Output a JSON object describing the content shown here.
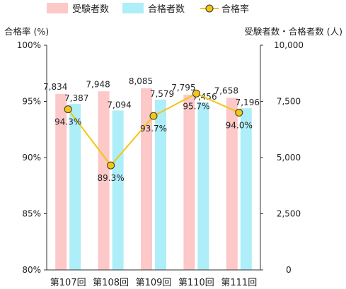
{
  "chart_data": {
    "type": "bar",
    "categories": [
      "第107回",
      "第108回",
      "第109回",
      "第110回",
      "第111回"
    ],
    "series": [
      {
        "name": "受験者数",
        "type": "bar",
        "axis": "right",
        "color": "#fcc8c8",
        "values": [
          7834,
          7948,
          8085,
          7795,
          7658
        ],
        "labels": [
          "7,834",
          "7,948",
          "8,085",
          "7,795",
          "7,658"
        ]
      },
      {
        "name": "合格者数",
        "type": "bar",
        "axis": "right",
        "color": "#aeeef8",
        "values": [
          7387,
          7094,
          7579,
          7456,
          7196
        ],
        "labels": [
          "7,387",
          "7,094",
          "7,579",
          "7,456",
          "7,196"
        ]
      },
      {
        "name": "合格率",
        "type": "line",
        "axis": "left",
        "color": "#f3c614",
        "values": [
          94.3,
          89.3,
          93.7,
          95.7,
          94.0
        ],
        "labels": [
          "94.3%",
          "89.3%",
          "93.7%",
          "95.7%",
          "94.0%"
        ]
      }
    ],
    "y_left": {
      "label": "合格率 (%)",
      "min": 80,
      "max": 100,
      "ticks": [
        80,
        85,
        90,
        95,
        100
      ],
      "tick_labels": [
        "80%",
        "85%",
        "90%",
        "95%",
        "100%"
      ]
    },
    "y_right": {
      "label": "受験者数・合格者数 (人)",
      "min": 0,
      "max": 10000,
      "ticks": [
        0,
        2500,
        5000,
        7500,
        10000
      ],
      "tick_labels": [
        "0",
        "2,500",
        "5,000",
        "7,500",
        "10,000"
      ]
    },
    "legend_position": "top",
    "grid": false
  }
}
